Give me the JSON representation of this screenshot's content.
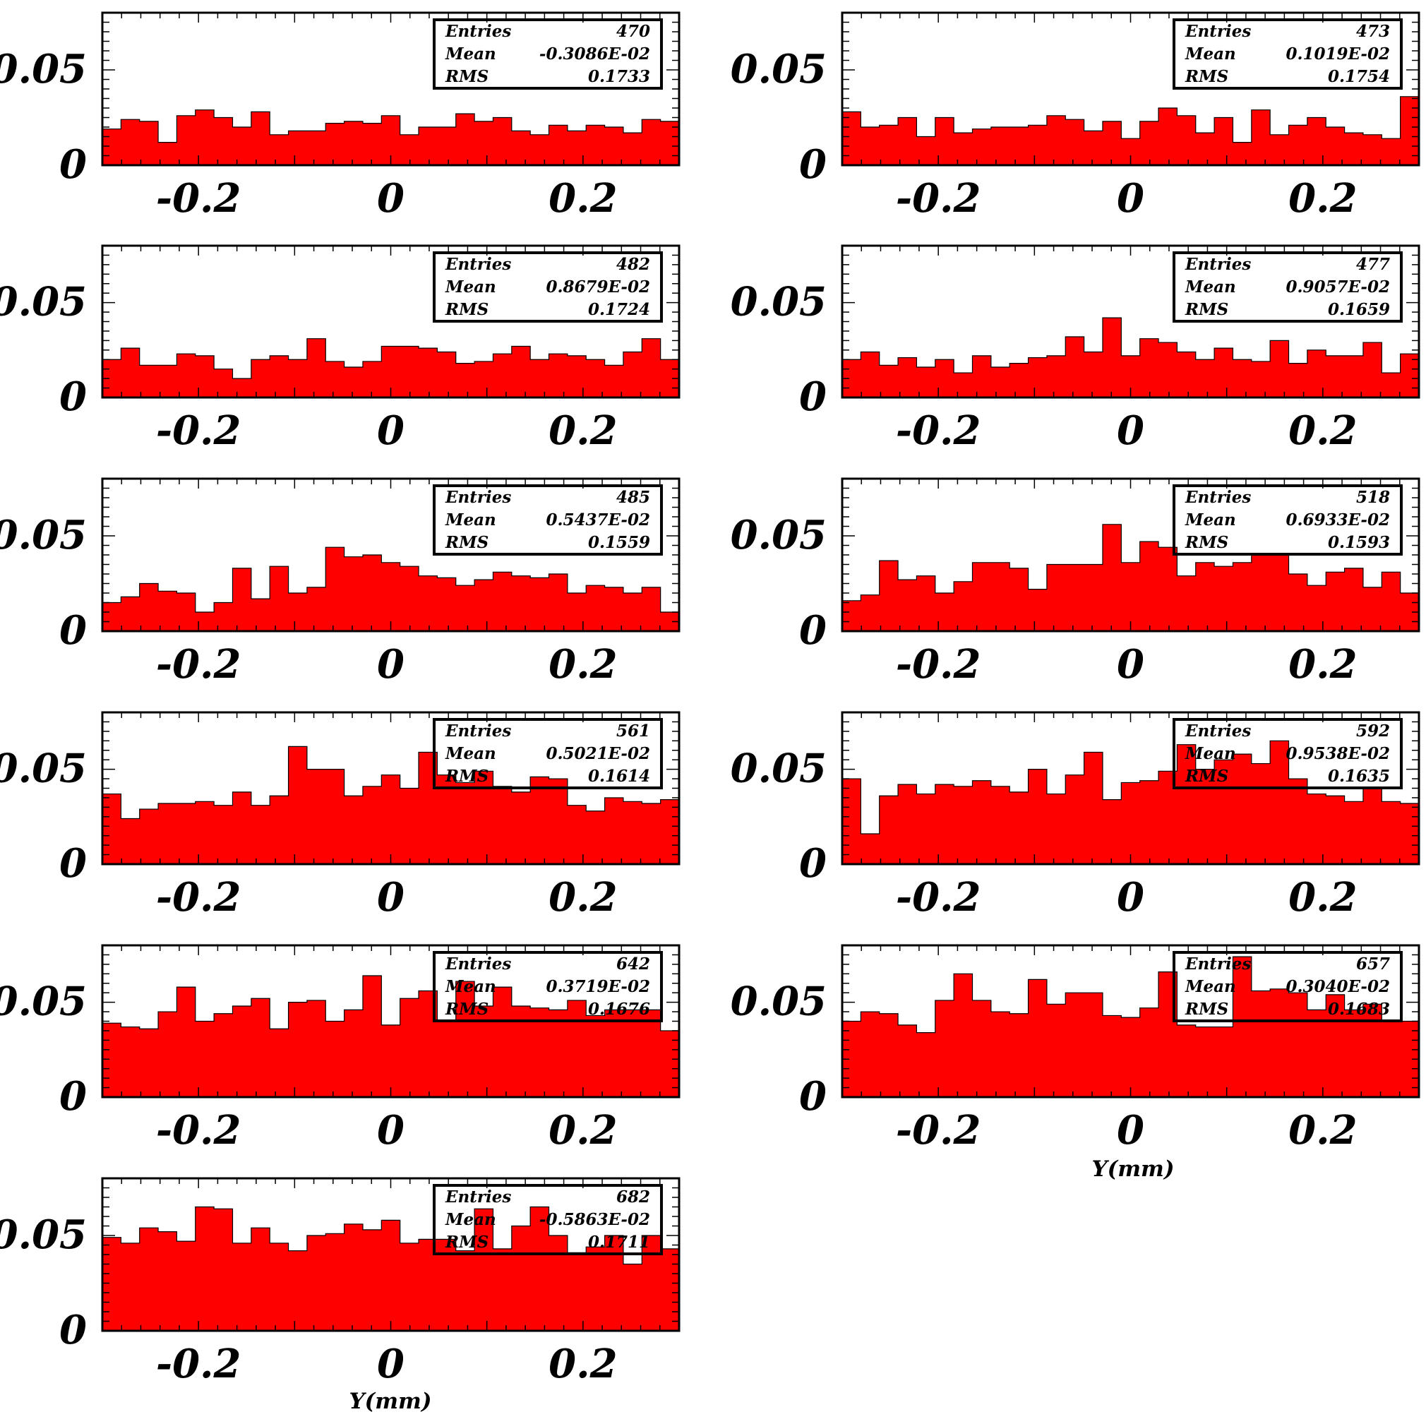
{
  "x_axis_label": "Y(mm)",
  "chart_data": [
    {
      "type": "bar",
      "x_ticks": [
        "-0.2",
        "0",
        "0.2"
      ],
      "y_ticks": [
        "0",
        "0.05"
      ],
      "xlim": [
        -0.3,
        0.3
      ],
      "ylim": [
        0,
        0.08
      ],
      "stats": {
        "entries_label": "Entries",
        "entries": "470",
        "mean_label": "Mean",
        "mean": "-0.3086E-02",
        "rms_label": "RMS",
        "rms": "0.1733"
      },
      "values": [
        0.019,
        0.024,
        0.023,
        0.012,
        0.026,
        0.029,
        0.025,
        0.02,
        0.028,
        0.016,
        0.018,
        0.018,
        0.022,
        0.023,
        0.022,
        0.026,
        0.016,
        0.02,
        0.02,
        0.027,
        0.023,
        0.025,
        0.018,
        0.016,
        0.021,
        0.018,
        0.021,
        0.02,
        0.017,
        0.024,
        0.023
      ]
    },
    {
      "type": "bar",
      "x_ticks": [
        "-0.2",
        "0",
        "0.2"
      ],
      "y_ticks": [
        "0",
        "0.05"
      ],
      "xlim": [
        -0.3,
        0.3
      ],
      "ylim": [
        0,
        0.08
      ],
      "stats": {
        "entries_label": "Entries",
        "entries": "473",
        "mean_label": "Mean",
        "mean": "0.1019E-02",
        "rms_label": "RMS",
        "rms": "0.1754"
      },
      "values": [
        0.028,
        0.02,
        0.021,
        0.025,
        0.015,
        0.025,
        0.017,
        0.019,
        0.02,
        0.02,
        0.021,
        0.026,
        0.024,
        0.018,
        0.023,
        0.014,
        0.023,
        0.03,
        0.026,
        0.017,
        0.025,
        0.012,
        0.029,
        0.016,
        0.021,
        0.025,
        0.02,
        0.017,
        0.016,
        0.014,
        0.036
      ]
    },
    {
      "type": "bar",
      "x_ticks": [
        "-0.2",
        "0",
        "0.2"
      ],
      "y_ticks": [
        "0",
        "0.05"
      ],
      "xlim": [
        -0.3,
        0.3
      ],
      "ylim": [
        0,
        0.08
      ],
      "stats": {
        "entries_label": "Entries",
        "entries": "482",
        "mean_label": "Mean",
        "mean": "0.8679E-02",
        "rms_label": "RMS",
        "rms": "0.1724"
      },
      "values": [
        0.02,
        0.026,
        0.017,
        0.017,
        0.023,
        0.022,
        0.015,
        0.01,
        0.02,
        0.022,
        0.02,
        0.031,
        0.019,
        0.016,
        0.019,
        0.027,
        0.027,
        0.026,
        0.024,
        0.018,
        0.019,
        0.023,
        0.027,
        0.02,
        0.023,
        0.022,
        0.02,
        0.017,
        0.024,
        0.031,
        0.02
      ]
    },
    {
      "type": "bar",
      "x_ticks": [
        "-0.2",
        "0",
        "0.2"
      ],
      "y_ticks": [
        "0",
        "0.05"
      ],
      "xlim": [
        -0.3,
        0.3
      ],
      "ylim": [
        0,
        0.08
      ],
      "stats": {
        "entries_label": "Entries",
        "entries": "477",
        "mean_label": "Mean",
        "mean": "0.9057E-02",
        "rms_label": "RMS",
        "rms": "0.1659"
      },
      "values": [
        0.02,
        0.024,
        0.017,
        0.021,
        0.016,
        0.02,
        0.013,
        0.022,
        0.016,
        0.018,
        0.021,
        0.022,
        0.032,
        0.024,
        0.042,
        0.022,
        0.031,
        0.029,
        0.024,
        0.02,
        0.026,
        0.02,
        0.019,
        0.03,
        0.018,
        0.025,
        0.022,
        0.022,
        0.029,
        0.013,
        0.023
      ]
    },
    {
      "type": "bar",
      "x_ticks": [
        "-0.2",
        "0",
        "0.2"
      ],
      "y_ticks": [
        "0",
        "0.05"
      ],
      "xlim": [
        -0.3,
        0.3
      ],
      "ylim": [
        0,
        0.08
      ],
      "stats": {
        "entries_label": "Entries",
        "entries": "485",
        "mean_label": "Mean",
        "mean": "0.5437E-02",
        "rms_label": "RMS",
        "rms": "0.1559"
      },
      "values": [
        0.015,
        0.018,
        0.025,
        0.021,
        0.02,
        0.01,
        0.015,
        0.033,
        0.017,
        0.034,
        0.02,
        0.023,
        0.044,
        0.039,
        0.04,
        0.036,
        0.034,
        0.029,
        0.028,
        0.024,
        0.027,
        0.031,
        0.029,
        0.028,
        0.03,
        0.02,
        0.024,
        0.023,
        0.02,
        0.023,
        0.01
      ]
    },
    {
      "type": "bar",
      "x_ticks": [
        "-0.2",
        "0",
        "0.2"
      ],
      "y_ticks": [
        "0",
        "0.05"
      ],
      "xlim": [
        -0.3,
        0.3
      ],
      "ylim": [
        0,
        0.08
      ],
      "stats": {
        "entries_label": "Entries",
        "entries": "518",
        "mean_label": "Mean",
        "mean": "0.6933E-02",
        "rms_label": "RMS",
        "rms": "0.1593"
      },
      "values": [
        0.016,
        0.019,
        0.037,
        0.027,
        0.029,
        0.02,
        0.026,
        0.036,
        0.036,
        0.033,
        0.022,
        0.035,
        0.035,
        0.035,
        0.056,
        0.036,
        0.047,
        0.044,
        0.029,
        0.036,
        0.034,
        0.036,
        0.04,
        0.04,
        0.03,
        0.024,
        0.031,
        0.033,
        0.023,
        0.031,
        0.02
      ]
    },
    {
      "type": "bar",
      "x_ticks": [
        "-0.2",
        "0",
        "0.2"
      ],
      "y_ticks": [
        "0",
        "0.05"
      ],
      "xlim": [
        -0.3,
        0.3
      ],
      "ylim": [
        0,
        0.08
      ],
      "stats": {
        "entries_label": "Entries",
        "entries": "561",
        "mean_label": "Mean",
        "mean": "0.5021E-02",
        "rms_label": "RMS",
        "rms": "0.1614"
      },
      "values": [
        0.037,
        0.024,
        0.029,
        0.032,
        0.032,
        0.033,
        0.031,
        0.038,
        0.031,
        0.036,
        0.062,
        0.05,
        0.05,
        0.036,
        0.041,
        0.047,
        0.04,
        0.059,
        0.047,
        0.043,
        0.049,
        0.041,
        0.038,
        0.046,
        0.045,
        0.031,
        0.028,
        0.035,
        0.033,
        0.032,
        0.034
      ]
    },
    {
      "type": "bar",
      "x_ticks": [
        "-0.2",
        "0",
        "0.2"
      ],
      "y_ticks": [
        "0",
        "0.05"
      ],
      "xlim": [
        -0.3,
        0.3
      ],
      "ylim": [
        0,
        0.08
      ],
      "stats": {
        "entries_label": "Entries",
        "entries": "592",
        "mean_label": "Mean",
        "mean": "0.9538E-02",
        "rms_label": "RMS",
        "rms": "0.1635"
      },
      "values": [
        0.045,
        0.016,
        0.036,
        0.042,
        0.037,
        0.042,
        0.041,
        0.044,
        0.041,
        0.038,
        0.05,
        0.037,
        0.047,
        0.059,
        0.034,
        0.043,
        0.044,
        0.049,
        0.063,
        0.05,
        0.055,
        0.058,
        0.053,
        0.065,
        0.045,
        0.037,
        0.036,
        0.033,
        0.04,
        0.033,
        0.032
      ]
    },
    {
      "type": "bar",
      "x_ticks": [
        "-0.2",
        "0",
        "0.2"
      ],
      "y_ticks": [
        "0",
        "0.05"
      ],
      "xlim": [
        -0.3,
        0.3
      ],
      "ylim": [
        0,
        0.08
      ],
      "stats": {
        "entries_label": "Entries",
        "entries": "642",
        "mean_label": "Mean",
        "mean": "0.3719E-02",
        "rms_label": "RMS",
        "rms": "0.1676"
      },
      "values": [
        0.039,
        0.037,
        0.036,
        0.045,
        0.058,
        0.04,
        0.044,
        0.048,
        0.052,
        0.036,
        0.05,
        0.051,
        0.04,
        0.046,
        0.064,
        0.038,
        0.052,
        0.056,
        0.04,
        0.061,
        0.048,
        0.058,
        0.048,
        0.047,
        0.046,
        0.051,
        0.043,
        0.046,
        0.046,
        0.046,
        0.035
      ]
    },
    {
      "type": "bar",
      "x_ticks": [
        "-0.2",
        "0",
        "0.2"
      ],
      "y_ticks": [
        "0",
        "0.05"
      ],
      "xlim": [
        -0.3,
        0.3
      ],
      "ylim": [
        0,
        0.08
      ],
      "stats": {
        "entries_label": "Entries",
        "entries": "657",
        "mean_label": "Mean",
        "mean": "0.3040E-02",
        "rms_label": "RMS",
        "rms": "0.1683"
      },
      "values": [
        0.04,
        0.045,
        0.044,
        0.038,
        0.034,
        0.051,
        0.065,
        0.051,
        0.045,
        0.044,
        0.062,
        0.049,
        0.055,
        0.055,
        0.043,
        0.042,
        0.047,
        0.066,
        0.038,
        0.037,
        0.037,
        0.074,
        0.056,
        0.057,
        0.055,
        0.046,
        0.054,
        0.046,
        0.049,
        0.04,
        0.04
      ]
    },
    {
      "type": "bar",
      "x_ticks": [
        "-0.2",
        "0",
        "0.2"
      ],
      "y_ticks": [
        "0",
        "0.05"
      ],
      "xlim": [
        -0.3,
        0.3
      ],
      "ylim": [
        0,
        0.08
      ],
      "stats": {
        "entries_label": "Entries",
        "entries": "682",
        "mean_label": "Mean",
        "mean": "-0.5863E-02",
        "rms_label": "RMS",
        "rms": "0.1711"
      },
      "values": [
        0.049,
        0.046,
        0.054,
        0.052,
        0.047,
        0.065,
        0.064,
        0.046,
        0.054,
        0.046,
        0.042,
        0.05,
        0.051,
        0.056,
        0.053,
        0.058,
        0.046,
        0.048,
        0.048,
        0.042,
        0.064,
        0.043,
        0.055,
        0.065,
        0.05,
        0.041,
        0.044,
        0.05,
        0.035,
        0.05,
        0.043
      ]
    }
  ]
}
